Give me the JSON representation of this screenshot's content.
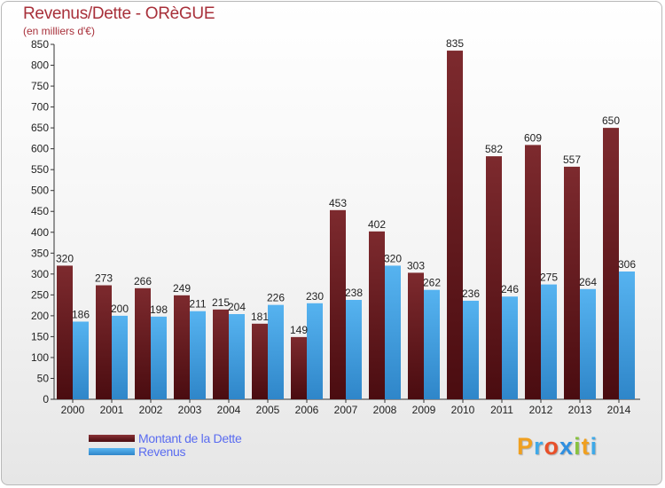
{
  "header": {
    "title": "Revenus/Dette - ORèGUE",
    "subtitle": "(en milliers d'€)"
  },
  "legend": {
    "items": [
      {
        "label": "Montant de la Dette",
        "color": "#6b1a1e"
      },
      {
        "label": "Revenus",
        "color": "#45a3e5"
      }
    ]
  },
  "brand": {
    "logo_text": "Proxiti"
  },
  "chart_data": {
    "type": "bar",
    "title": "Revenus/Dette - ORèGUE",
    "subtitle": "(en milliers d'€)",
    "xlabel": "",
    "ylabel": "",
    "categories": [
      "2000",
      "2001",
      "2002",
      "2003",
      "2004",
      "2005",
      "2006",
      "2007",
      "2008",
      "2009",
      "2010",
      "2011",
      "2012",
      "2013",
      "2014"
    ],
    "series": [
      {
        "name": "Montant de la Dette",
        "color": "#7a2327",
        "values": [
          320,
          273,
          266,
          249,
          215,
          181,
          149,
          453,
          402,
          303,
          835,
          582,
          609,
          557,
          650
        ]
      },
      {
        "name": "Revenus",
        "color": "#4aa6e6",
        "values": [
          186,
          200,
          198,
          211,
          204,
          226,
          230,
          238,
          320,
          262,
          236,
          246,
          275,
          264,
          306
        ]
      }
    ],
    "ylim": [
      0,
      850
    ],
    "yticks": [
      0,
      50,
      100,
      150,
      200,
      250,
      300,
      350,
      400,
      450,
      500,
      550,
      600,
      650,
      700,
      750,
      800,
      850
    ],
    "grid": false,
    "legend_position": "bottom-left"
  }
}
